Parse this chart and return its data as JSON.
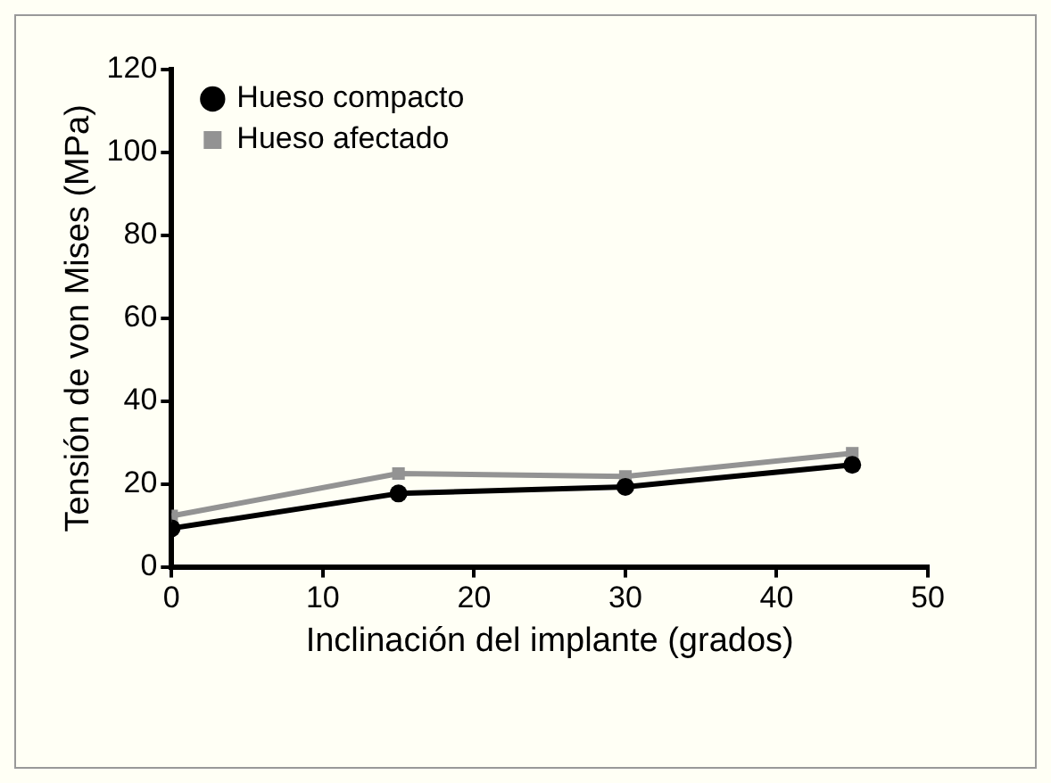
{
  "chart_data": {
    "type": "line",
    "xlabel": "Inclinación del implante (grados)",
    "ylabel": "Tensión de von Mises (MPa)",
    "x": [
      0,
      15,
      30,
      45
    ],
    "series": [
      {
        "name": "Hueso compacto",
        "color": "#000000",
        "marker": "circle",
        "values": [
          9.3,
          17.7,
          19.3,
          24.6
        ]
      },
      {
        "name": "Hueso afectado",
        "color": "#939393",
        "marker": "square",
        "values": [
          12.3,
          22.5,
          21.8,
          27.4
        ]
      }
    ],
    "xlim": [
      0,
      50
    ],
    "xticks": [
      0,
      10,
      20,
      30,
      40,
      50
    ],
    "ylim": [
      0,
      120
    ],
    "yticks": [
      0,
      20,
      40,
      60,
      80,
      100,
      120
    ],
    "grid": false,
    "legend": "top left"
  }
}
